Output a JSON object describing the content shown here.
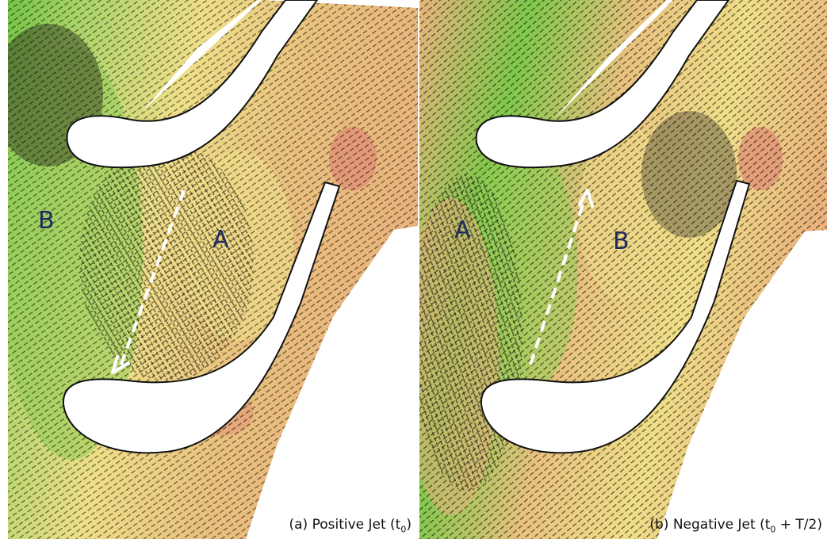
{
  "panels": [
    {
      "id": "a",
      "caption_prefix": "(a) Positive Jet (t",
      "caption_sub": "0",
      "caption_suffix": ")",
      "region_labels": {
        "left": "B",
        "right": "A"
      },
      "jet_direction": "downward"
    },
    {
      "id": "b",
      "caption_prefix": "(b) Negative Jet (t",
      "caption_sub": "0",
      "caption_suffix": " + T/2)",
      "region_labels": {
        "left": "A",
        "right": "B"
      },
      "jet_direction": "upward"
    }
  ],
  "colors": {
    "field_green": "#7fc84a",
    "field_yellow": "#efe487",
    "field_orange": "#eab07a",
    "field_red": "#e08a74",
    "vector_black": "#000000",
    "jet_arrow": "#ffffff",
    "label_navy": "#1f2b5e"
  }
}
